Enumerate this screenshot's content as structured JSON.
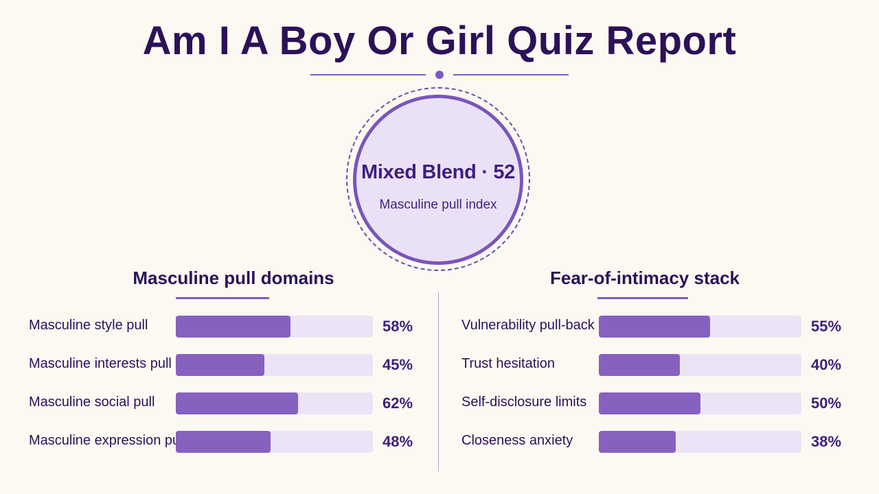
{
  "title": "Am I A Boy Or Girl Quiz Report",
  "result": {
    "headline": "Mixed Blend · 52",
    "subtitle": "Masculine pull index"
  },
  "colors": {
    "accent": "#7d5bbd",
    "bar_fill": "#8661bf",
    "bar_track": "#ece4f6",
    "text_dark": "#2c1158",
    "background": "#fcf9f3"
  },
  "chart_data": [
    {
      "type": "bar",
      "orientation": "horizontal",
      "title": "Masculine pull domains",
      "categories": [
        "Masculine style pull",
        "Masculine interests pull",
        "Masculine social pull",
        "Masculine expression pull"
      ],
      "values": [
        58,
        45,
        62,
        48
      ],
      "value_labels": [
        "58%",
        "45%",
        "62%",
        "48%"
      ],
      "xlim": [
        0,
        100
      ]
    },
    {
      "type": "bar",
      "orientation": "horizontal",
      "title": "Fear-of-intimacy stack",
      "categories": [
        "Vulnerability pull-back",
        "Trust hesitation",
        "Self-disclosure limits",
        "Closeness anxiety"
      ],
      "values": [
        55,
        40,
        50,
        38
      ],
      "value_labels": [
        "55%",
        "40%",
        "50%",
        "38%"
      ],
      "xlim": [
        0,
        100
      ]
    }
  ]
}
